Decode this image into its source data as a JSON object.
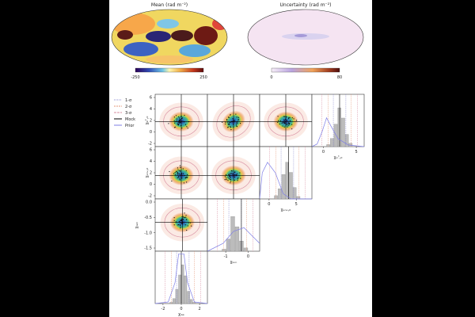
{
  "maps": {
    "mean": {
      "title": "Mean (rad m⁻²)",
      "cbar_min": "-250",
      "cbar_max": "250",
      "cmap": "RdYlBu_r"
    },
    "uncertainty": {
      "title": "Uncertainty (rad m⁻²)",
      "cbar_min": "0",
      "cbar_max": "80",
      "cmap": "pink-white"
    }
  },
  "legend": [
    {
      "label": "1-σ",
      "color": "#8a8acf",
      "style": "dotted"
    },
    {
      "label": "2-σ",
      "color": "#e59a7a",
      "style": "dashed"
    },
    {
      "label": "3-σ",
      "color": "#d78ca0",
      "style": "dashed"
    },
    {
      "label": "Mock",
      "color": "#000000",
      "style": "solid"
    },
    {
      "label": "Prior",
      "color": "#7f7fe6",
      "style": "solid"
    }
  ],
  "chart_data": {
    "type": "corner",
    "parameters": [
      {
        "id": "p0",
        "label": "χᵢₙᵗ,₀",
        "range": [
          -2,
          6
        ],
        "mock": 2,
        "ticks": [
          "0",
          "5"
        ]
      },
      {
        "id": "p1",
        "label": "χₑₙᵥ,₀",
        "range": [
          -2,
          6
        ],
        "mock": 2.5,
        "ticks": [
          "0",
          "5"
        ]
      },
      {
        "id": "p2",
        "label": "χₗᵤₘ",
        "range": [
          -1.75,
          0.25
        ],
        "mock": -0.6,
        "ticks": [
          "-1",
          "0"
        ]
      },
      {
        "id": "p3",
        "label": "χₗₐₑ",
        "range": [
          -2.5,
          2.5
        ],
        "mock": 0,
        "ticks": [
          "-2",
          "0",
          "2"
        ]
      }
    ],
    "y_ticks_upper": [
      "6",
      "4",
      "2",
      "0",
      "-2"
    ],
    "y_ticks_mid": [
      "6",
      "4",
      "2",
      "0",
      "-2"
    ],
    "y_ticks_lum": [
      "0.0",
      "-0.5",
      "-1.0",
      "-1.5"
    ],
    "hist_p0": [
      0.05,
      0.2,
      0.55,
      0.95,
      0.7,
      0.3,
      0.08
    ],
    "hist_p1": [
      0.08,
      0.25,
      0.6,
      0.9,
      0.65,
      0.28,
      0.06
    ],
    "hist_p2": [
      0.05,
      0.3,
      0.85,
      0.6,
      0.25,
      0.08
    ],
    "hist_p3": [
      0.03,
      0.12,
      0.35,
      0.7,
      0.95,
      0.68,
      0.3,
      0.1,
      0.03
    ],
    "grid": false
  }
}
